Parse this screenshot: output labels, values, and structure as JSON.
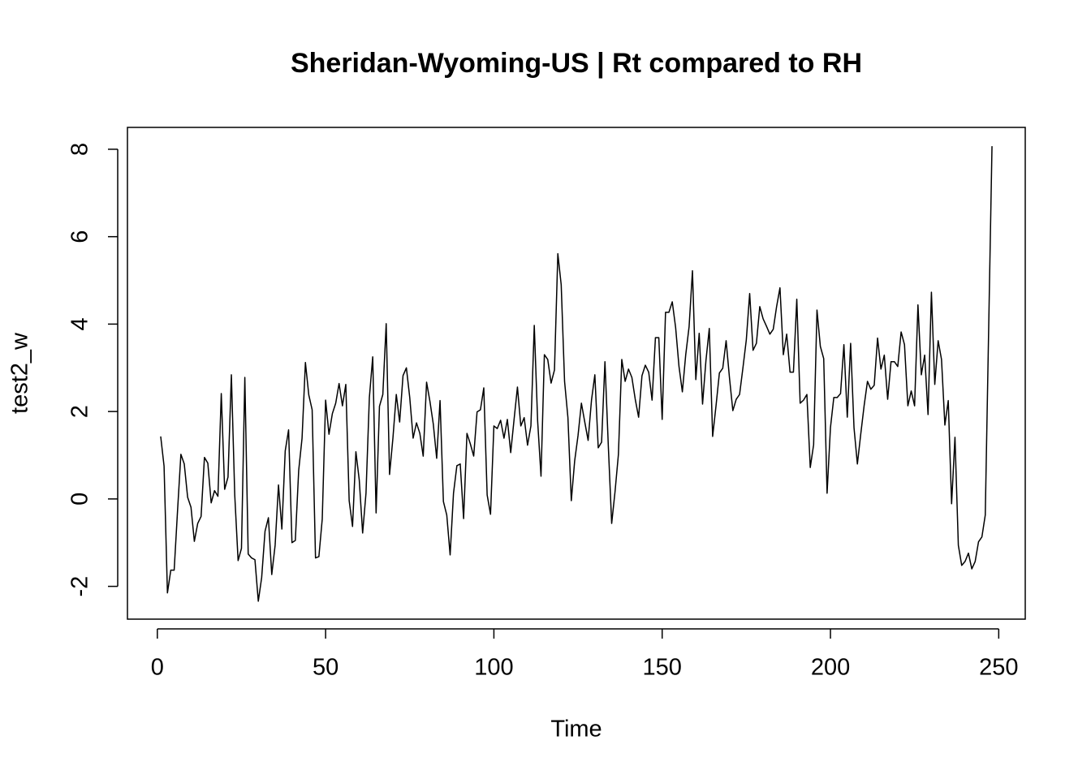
{
  "chart_data": {
    "type": "line",
    "title": "Sheridan-Wyoming-US | Rt compared to RH",
    "x_label": "Time",
    "y_label": "test2_w",
    "x": [
      1,
      2,
      3,
      4,
      5,
      6,
      7,
      8,
      9,
      10,
      11,
      12,
      13,
      14,
      15,
      16,
      17,
      18,
      19,
      20,
      21,
      22,
      23,
      24,
      25,
      26,
      27,
      28,
      29,
      30,
      31,
      32,
      33,
      34,
      35,
      36,
      37,
      38,
      39,
      40,
      41,
      42,
      43,
      44,
      45,
      46,
      47,
      48,
      49,
      50,
      51,
      52,
      53,
      54,
      55,
      56,
      57,
      58,
      59,
      60,
      61,
      62,
      63,
      64,
      65,
      66,
      67,
      68,
      69,
      70,
      71,
      72,
      73,
      74,
      75,
      76,
      77,
      78,
      79,
      80,
      81,
      82,
      83,
      84,
      85,
      86,
      87,
      88,
      89,
      90,
      91,
      92,
      93,
      94,
      95,
      96,
      97,
      98,
      99,
      100,
      101,
      102,
      103,
      104,
      105,
      106,
      107,
      108,
      109,
      110,
      111,
      112,
      113,
      114,
      115,
      116,
      117,
      118,
      119,
      120,
      121,
      122,
      123,
      124,
      125,
      126,
      127,
      128,
      129,
      130,
      131,
      132,
      133,
      134,
      135,
      136,
      137,
      138,
      139,
      140,
      141,
      142,
      143,
      144,
      145,
      146,
      147,
      148,
      149,
      150,
      151,
      152,
      153,
      154,
      155,
      156,
      157,
      158,
      159,
      160,
      161,
      162,
      163,
      164,
      165,
      166,
      167,
      168,
      169,
      170,
      171,
      172,
      173,
      174,
      175,
      176,
      177,
      178,
      179,
      180,
      181,
      182,
      183,
      184,
      185,
      186,
      187,
      188,
      189,
      190,
      191,
      192,
      193,
      194,
      195,
      196,
      197,
      198,
      199,
      200,
      201,
      202,
      203,
      204,
      205,
      206,
      207,
      208,
      209,
      210,
      211,
      212,
      213,
      214,
      215,
      216,
      217,
      218,
      219,
      220,
      221,
      222,
      223,
      224,
      225,
      226,
      227,
      228,
      229,
      230,
      231,
      232,
      233,
      234,
      235,
      236,
      237,
      238,
      239,
      240,
      241,
      242,
      243,
      244,
      245,
      246,
      247,
      248
    ],
    "series": [
      {
        "name": "test2_w",
        "color": "#000000",
        "values": [
          1.43,
          0.75,
          -2.15,
          -1.63,
          -1.63,
          -0.28,
          1.02,
          0.8,
          0.04,
          -0.19,
          -0.97,
          -0.56,
          -0.4,
          0.95,
          0.82,
          -0.09,
          0.19,
          0.06,
          2.41,
          0.22,
          0.5,
          2.84,
          0.09,
          -1.41,
          -1.13,
          2.78,
          -1.26,
          -1.35,
          -1.39,
          -2.34,
          -1.8,
          -0.74,
          -0.43,
          -1.73,
          -1.06,
          0.32,
          -0.69,
          1.1,
          1.58,
          -1.0,
          -0.95,
          0.65,
          1.39,
          3.12,
          2.38,
          2.04,
          -1.35,
          -1.32,
          -0.46,
          2.26,
          1.48,
          1.95,
          2.19,
          2.64,
          2.13,
          2.62,
          -0.04,
          -0.63,
          1.08,
          0.43,
          -0.78,
          0.13,
          2.32,
          3.25,
          -0.32,
          2.12,
          2.39,
          4.01,
          0.56,
          1.39,
          2.39,
          1.76,
          2.82,
          3.0,
          2.32,
          1.39,
          1.74,
          1.5,
          0.98,
          2.67,
          2.23,
          1.71,
          0.93,
          2.25,
          -0.06,
          -0.37,
          -1.28,
          0.13,
          0.76,
          0.8,
          -0.45,
          1.5,
          1.26,
          0.98,
          1.99,
          2.04,
          2.54,
          0.09,
          -0.35,
          1.67,
          1.61,
          1.8,
          1.39,
          1.82,
          1.06,
          1.82,
          2.56,
          1.67,
          1.86,
          1.23,
          1.67,
          3.97,
          1.78,
          0.52,
          3.3,
          3.19,
          2.65,
          2.95,
          5.61,
          4.9,
          2.69,
          1.86,
          -0.04,
          0.87,
          1.45,
          2.19,
          1.76,
          1.34,
          2.26,
          2.84,
          1.17,
          1.3,
          3.14,
          1.21,
          -0.56,
          0.17,
          1.02,
          3.19,
          2.69,
          2.97,
          2.78,
          2.28,
          1.87,
          2.82,
          3.06,
          2.9,
          2.26,
          3.69,
          3.69,
          1.82,
          4.27,
          4.27,
          4.51,
          3.92,
          3.03,
          2.45,
          3.3,
          3.94,
          5.22,
          2.73,
          3.79,
          2.17,
          3.16,
          3.9,
          1.43,
          2.13,
          2.88,
          2.99,
          3.62,
          2.77,
          2.02,
          2.28,
          2.39,
          3.0,
          3.64,
          4.7,
          3.4,
          3.56,
          4.4,
          4.12,
          3.95,
          3.77,
          3.88,
          4.4,
          4.83,
          3.3,
          3.77,
          2.9,
          2.9,
          4.57,
          2.19,
          2.26,
          2.39,
          0.72,
          1.24,
          4.32,
          3.49,
          3.21,
          0.13,
          1.63,
          2.32,
          2.32,
          2.41,
          3.53,
          1.87,
          3.56,
          1.63,
          0.8,
          1.48,
          2.13,
          2.69,
          2.51,
          2.6,
          3.68,
          2.97,
          3.29,
          2.28,
          3.14,
          3.14,
          3.03,
          3.82,
          3.53,
          2.13,
          2.47,
          2.13,
          4.44,
          2.84,
          3.29,
          1.93,
          4.73,
          2.62,
          3.62,
          3.19,
          1.69,
          2.25,
          -0.11,
          1.41,
          -1.06,
          -1.52,
          -1.43,
          -1.24,
          -1.6,
          -1.43,
          -0.98,
          -0.87,
          -0.37,
          3.84,
          8.07
        ]
      }
    ],
    "xlim": [
      -8.88,
      257.88
    ],
    "ylim": [
      -2.75,
      8.5
    ],
    "xticks": [
      0,
      50,
      100,
      150,
      200,
      250
    ],
    "yticks": [
      -2,
      0,
      2,
      4,
      6,
      8
    ]
  }
}
